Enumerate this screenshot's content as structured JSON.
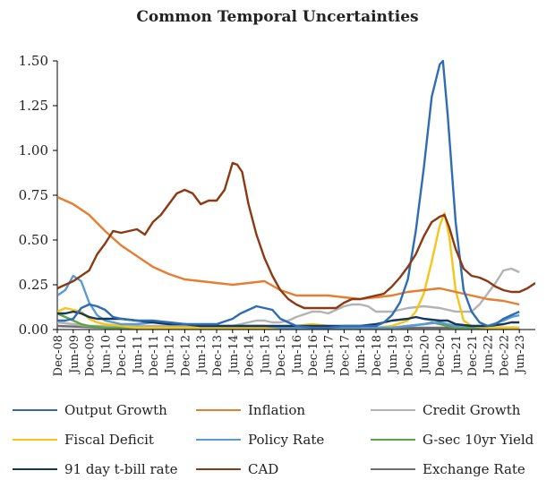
{
  "chart_data": {
    "type": "line",
    "title": "Common Temporal Uncertainties",
    "xlabel": "",
    "ylabel": "",
    "ylim": [
      0,
      1.5
    ],
    "yticks": [
      "0.00",
      "0.25",
      "0.50",
      "0.75",
      "1.00",
      "1.25",
      "1.50"
    ],
    "x_tick_labels": [
      "Dec-08",
      "Jun-09",
      "Dec-09",
      "Jun-10",
      "Dec-10",
      "Jun-11",
      "Dec-11",
      "Jun-12",
      "Dec-12",
      "Jun-13",
      "Dec-13",
      "Jun-14",
      "Dec-14",
      "Jun-15",
      "Dec-15",
      "Jun-16",
      "Dec-16",
      "Jun-17",
      "Dec-17",
      "Jun-18",
      "Dec-18",
      "Jun-19",
      "Dec-19",
      "Jun-20",
      "Dec-20",
      "Jun-21",
      "Dec-21",
      "Jun-22",
      "Dec-22",
      "Jun-23"
    ],
    "x_start": "Dec-08",
    "x_end": "Jun-23",
    "series": [
      {
        "name": "Output Growth",
        "color": "#2e6db4",
        "points": [
          [
            0,
            0.05
          ],
          [
            0.5,
            0.05
          ],
          [
            1,
            0.06
          ],
          [
            1.5,
            0.12
          ],
          [
            2,
            0.14
          ],
          [
            2.5,
            0.13
          ],
          [
            3,
            0.11
          ],
          [
            3.5,
            0.07
          ],
          [
            4,
            0.06
          ],
          [
            5,
            0.05
          ],
          [
            6,
            0.05
          ],
          [
            7,
            0.04
          ],
          [
            8,
            0.03
          ],
          [
            9,
            0.03
          ],
          [
            10,
            0.03
          ],
          [
            11,
            0.06
          ],
          [
            11.5,
            0.09
          ],
          [
            12,
            0.11
          ],
          [
            12.5,
            0.13
          ],
          [
            13,
            0.12
          ],
          [
            13.5,
            0.11
          ],
          [
            14,
            0.06
          ],
          [
            15,
            0.02
          ],
          [
            16,
            0.01
          ],
          [
            17,
            0.01
          ],
          [
            18,
            0.02
          ],
          [
            19,
            0.02
          ],
          [
            20,
            0.02
          ],
          [
            20.5,
            0.04
          ],
          [
            21,
            0.08
          ],
          [
            21.5,
            0.15
          ],
          [
            22,
            0.28
          ],
          [
            22.5,
            0.55
          ],
          [
            23,
            0.9
          ],
          [
            23.5,
            1.3
          ],
          [
            24,
            1.48
          ],
          [
            24.2,
            1.5
          ],
          [
            24.5,
            1.2
          ],
          [
            25,
            0.6
          ],
          [
            25.5,
            0.22
          ],
          [
            26,
            0.1
          ],
          [
            26.5,
            0.04
          ],
          [
            27,
            0.02
          ],
          [
            27.5,
            0.03
          ],
          [
            28,
            0.06
          ],
          [
            28.5,
            0.08
          ],
          [
            29,
            0.1
          ]
        ]
      },
      {
        "name": "Inflation",
        "color": "#e67e32",
        "points": [
          [
            0,
            0.74
          ],
          [
            0.5,
            0.72
          ],
          [
            1,
            0.7
          ],
          [
            2,
            0.64
          ],
          [
            3,
            0.55
          ],
          [
            4,
            0.47
          ],
          [
            5,
            0.41
          ],
          [
            6,
            0.35
          ],
          [
            7,
            0.31
          ],
          [
            8,
            0.28
          ],
          [
            9,
            0.27
          ],
          [
            10,
            0.26
          ],
          [
            11,
            0.25
          ],
          [
            12,
            0.26
          ],
          [
            13,
            0.27
          ],
          [
            14,
            0.22
          ],
          [
            15,
            0.19
          ],
          [
            16,
            0.19
          ],
          [
            17,
            0.19
          ],
          [
            18,
            0.18
          ],
          [
            19,
            0.17
          ],
          [
            20,
            0.18
          ],
          [
            21,
            0.19
          ],
          [
            22,
            0.21
          ],
          [
            23,
            0.22
          ],
          [
            24,
            0.23
          ],
          [
            25,
            0.21
          ],
          [
            26,
            0.19
          ],
          [
            27,
            0.17
          ],
          [
            28,
            0.16
          ],
          [
            28.5,
            0.15
          ],
          [
            29,
            0.14
          ]
        ]
      },
      {
        "name": "Credit Growth",
        "color": "#b3b3b3",
        "points": [
          [
            0,
            0.04
          ],
          [
            1,
            0.03
          ],
          [
            2,
            0.02
          ],
          [
            4,
            0.02
          ],
          [
            6,
            0.02
          ],
          [
            8,
            0.02
          ],
          [
            10,
            0.02
          ],
          [
            11,
            0.02
          ],
          [
            11.5,
            0.03
          ],
          [
            12,
            0.04
          ],
          [
            12.5,
            0.05
          ],
          [
            13,
            0.05
          ],
          [
            13.5,
            0.04
          ],
          [
            14,
            0.04
          ],
          [
            14.5,
            0.05
          ],
          [
            15,
            0.07
          ],
          [
            16,
            0.1
          ],
          [
            16.5,
            0.1
          ],
          [
            17,
            0.09
          ],
          [
            18,
            0.13
          ],
          [
            18.5,
            0.14
          ],
          [
            19,
            0.14
          ],
          [
            19.5,
            0.13
          ],
          [
            20,
            0.1
          ],
          [
            21,
            0.1
          ],
          [
            22,
            0.12
          ],
          [
            23,
            0.13
          ],
          [
            24,
            0.12
          ],
          [
            25,
            0.1
          ],
          [
            26,
            0.1
          ],
          [
            26.5,
            0.14
          ],
          [
            27,
            0.2
          ],
          [
            27.5,
            0.26
          ],
          [
            28,
            0.33
          ],
          [
            28.5,
            0.34
          ],
          [
            29,
            0.32
          ]
        ]
      },
      {
        "name": "Fiscal Deficit",
        "color": "#f5c518",
        "points": [
          [
            0,
            0.1
          ],
          [
            0.5,
            0.12
          ],
          [
            1,
            0.11
          ],
          [
            1.5,
            0.1
          ],
          [
            2,
            0.06
          ],
          [
            2.5,
            0.04
          ],
          [
            3,
            0.03
          ],
          [
            4,
            0.02
          ],
          [
            5,
            0.01
          ],
          [
            6,
            0.01
          ],
          [
            8,
            0.01
          ],
          [
            10,
            0.01
          ],
          [
            12,
            0.01
          ],
          [
            14,
            0.01
          ],
          [
            15,
            0.02
          ],
          [
            16,
            0.03
          ],
          [
            17,
            0.02
          ],
          [
            18,
            0.01
          ],
          [
            19,
            0.01
          ],
          [
            20,
            0.01
          ],
          [
            21,
            0.02
          ],
          [
            22,
            0.05
          ],
          [
            22.5,
            0.1
          ],
          [
            23,
            0.2
          ],
          [
            23.5,
            0.38
          ],
          [
            24,
            0.58
          ],
          [
            24.3,
            0.65
          ],
          [
            24.6,
            0.52
          ],
          [
            25,
            0.22
          ],
          [
            25.5,
            0.05
          ],
          [
            26,
            0.02
          ],
          [
            27,
            0.01
          ],
          [
            28,
            0.01
          ],
          [
            29,
            0.01
          ]
        ]
      },
      {
        "name": "Policy Rate",
        "color": "#5a9bd5",
        "points": [
          [
            0,
            0.19
          ],
          [
            0.5,
            0.22
          ],
          [
            1,
            0.3
          ],
          [
            1.5,
            0.27
          ],
          [
            2,
            0.15
          ],
          [
            2.5,
            0.08
          ],
          [
            3,
            0.05
          ],
          [
            4,
            0.03
          ],
          [
            5,
            0.03
          ],
          [
            6,
            0.04
          ],
          [
            7,
            0.04
          ],
          [
            8,
            0.03
          ],
          [
            9,
            0.02
          ],
          [
            10,
            0.02
          ],
          [
            11,
            0.02
          ],
          [
            12,
            0.02
          ],
          [
            13,
            0.02
          ],
          [
            14,
            0.01
          ],
          [
            16,
            0.01
          ],
          [
            18,
            0.01
          ],
          [
            20,
            0.01
          ],
          [
            21,
            0.01
          ],
          [
            22,
            0.02
          ],
          [
            23,
            0.03
          ],
          [
            24,
            0.04
          ],
          [
            25,
            0.02
          ],
          [
            26,
            0.02
          ],
          [
            27,
            0.02
          ],
          [
            28,
            0.05
          ],
          [
            28.5,
            0.07
          ],
          [
            29,
            0.08
          ]
        ]
      },
      {
        "name": "G-sec 10yr Yield",
        "color": "#5aa646",
        "points": [
          [
            0,
            0.09
          ],
          [
            0.5,
            0.07
          ],
          [
            1,
            0.05
          ],
          [
            1.5,
            0.03
          ],
          [
            2,
            0.02
          ],
          [
            3,
            0.01
          ],
          [
            5,
            0.01
          ],
          [
            7,
            0.01
          ],
          [
            9,
            0.01
          ],
          [
            11,
            0.01
          ],
          [
            13,
            0.01
          ],
          [
            15,
            0.01
          ],
          [
            17,
            0.01
          ],
          [
            19,
            0.01
          ],
          [
            21,
            0.01
          ],
          [
            22,
            0.02
          ],
          [
            23,
            0.03
          ],
          [
            23.5,
            0.04
          ],
          [
            24,
            0.03
          ],
          [
            25,
            0.01
          ],
          [
            27,
            0.01
          ],
          [
            29,
            0.01
          ]
        ]
      },
      {
        "name": "91 day t-bill rate",
        "color": "#16365c",
        "points": [
          [
            0,
            0.09
          ],
          [
            0.5,
            0.09
          ],
          [
            1,
            0.1
          ],
          [
            1.5,
            0.09
          ],
          [
            2,
            0.07
          ],
          [
            2.5,
            0.06
          ],
          [
            3,
            0.06
          ],
          [
            4,
            0.06
          ],
          [
            5,
            0.05
          ],
          [
            6,
            0.04
          ],
          [
            7,
            0.03
          ],
          [
            8,
            0.03
          ],
          [
            9,
            0.02
          ],
          [
            10,
            0.02
          ],
          [
            11,
            0.02
          ],
          [
            12,
            0.02
          ],
          [
            13,
            0.02
          ],
          [
            14,
            0.02
          ],
          [
            15,
            0.02
          ],
          [
            16,
            0.02
          ],
          [
            17,
            0.02
          ],
          [
            18,
            0.02
          ],
          [
            19,
            0.02
          ],
          [
            20,
            0.03
          ],
          [
            21,
            0.05
          ],
          [
            22,
            0.06
          ],
          [
            22.5,
            0.07
          ],
          [
            23,
            0.06
          ],
          [
            24,
            0.05
          ],
          [
            24.5,
            0.05
          ],
          [
            25,
            0.03
          ],
          [
            26,
            0.02
          ],
          [
            27,
            0.02
          ],
          [
            28,
            0.03
          ],
          [
            28.5,
            0.04
          ],
          [
            29,
            0.04
          ]
        ]
      },
      {
        "name": "CAD",
        "color": "#8b3a13",
        "points": [
          [
            0,
            0.23
          ],
          [
            0.5,
            0.25
          ],
          [
            1,
            0.27
          ],
          [
            1.5,
            0.3
          ],
          [
            2,
            0.33
          ],
          [
            2.5,
            0.42
          ],
          [
            3,
            0.48
          ],
          [
            3.5,
            0.55
          ],
          [
            4,
            0.54
          ],
          [
            5,
            0.56
          ],
          [
            5.5,
            0.53
          ],
          [
            6,
            0.6
          ],
          [
            6.5,
            0.64
          ],
          [
            7,
            0.7
          ],
          [
            7.5,
            0.76
          ],
          [
            8,
            0.78
          ],
          [
            8.5,
            0.76
          ],
          [
            9,
            0.7
          ],
          [
            9.5,
            0.72
          ],
          [
            10,
            0.72
          ],
          [
            10.5,
            0.78
          ],
          [
            11,
            0.93
          ],
          [
            11.3,
            0.92
          ],
          [
            11.6,
            0.88
          ],
          [
            12,
            0.7
          ],
          [
            12.5,
            0.53
          ],
          [
            13,
            0.4
          ],
          [
            13.5,
            0.3
          ],
          [
            14,
            0.22
          ],
          [
            14.5,
            0.17
          ],
          [
            15,
            0.14
          ],
          [
            15.5,
            0.12
          ],
          [
            16,
            0.12
          ],
          [
            17,
            0.12
          ],
          [
            17.5,
            0.12
          ],
          [
            18,
            0.15
          ],
          [
            18.5,
            0.17
          ],
          [
            19,
            0.17
          ],
          [
            19.5,
            0.18
          ],
          [
            20,
            0.19
          ],
          [
            20.5,
            0.2
          ],
          [
            21,
            0.24
          ],
          [
            21.5,
            0.29
          ],
          [
            22,
            0.35
          ],
          [
            22.5,
            0.42
          ],
          [
            23,
            0.52
          ],
          [
            23.5,
            0.6
          ],
          [
            24,
            0.63
          ],
          [
            24.3,
            0.64
          ],
          [
            24.6,
            0.57
          ],
          [
            25,
            0.45
          ],
          [
            25.5,
            0.34
          ],
          [
            26,
            0.3
          ],
          [
            26.5,
            0.29
          ],
          [
            27,
            0.27
          ],
          [
            27.5,
            0.24
          ],
          [
            28,
            0.22
          ],
          [
            28.5,
            0.21
          ],
          [
            29,
            0.21
          ],
          [
            29.5,
            0.23
          ],
          [
            30,
            0.26
          ]
        ]
      },
      {
        "name": "Exchange Rate",
        "color": "#6e6e6e",
        "points": [
          [
            0,
            0.02
          ],
          [
            3,
            0.01
          ],
          [
            6,
            0.01
          ],
          [
            9,
            0.01
          ],
          [
            12,
            0.01
          ],
          [
            15,
            0.01
          ],
          [
            18,
            0.01
          ],
          [
            21,
            0.01
          ],
          [
            24,
            0.01
          ],
          [
            27,
            0.01
          ],
          [
            29,
            0.01
          ]
        ]
      }
    ]
  }
}
